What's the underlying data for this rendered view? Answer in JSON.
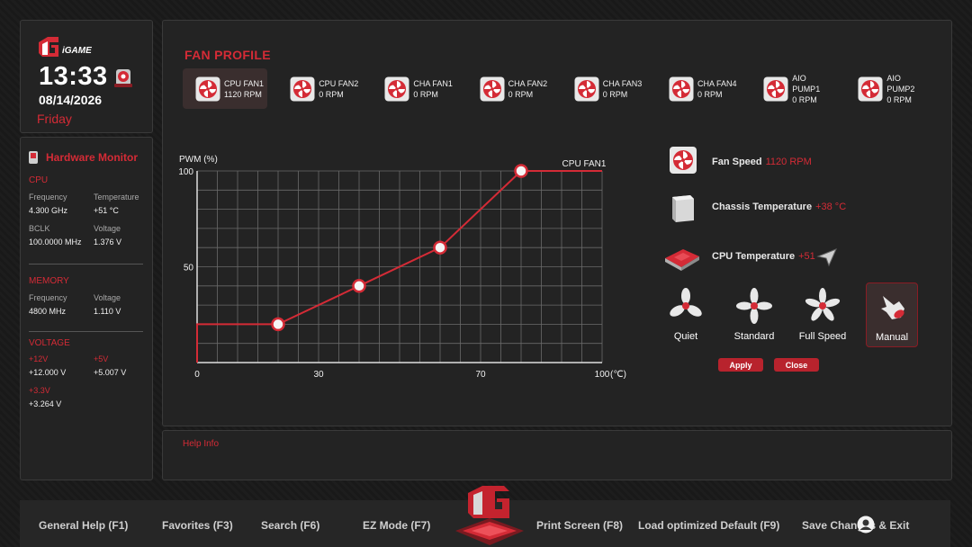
{
  "clock": {
    "time": "13:33",
    "date": "08/14/2026",
    "day": "Friday"
  },
  "hardware_monitor": {
    "title": "Hardware Monitor",
    "cpu": {
      "title": "CPU",
      "frequency_label": "Frequency",
      "frequency_value": "4.300 GHz",
      "temperature_label": "Temperature",
      "temperature_value": "+51 °C",
      "bclk_label": "BCLK",
      "bclk_value": "100.0000 MHz",
      "voltage_label": "Voltage",
      "voltage_value": "1.376 V"
    },
    "memory": {
      "title": "MEMORY",
      "frequency_label": "Frequency",
      "frequency_value": "4800 MHz",
      "voltage_label": "Voltage",
      "voltage_value": "1.110 V"
    },
    "voltage": {
      "title": "VOLTAGE",
      "v12_label": "+12V",
      "v12_value": "+12.000 V",
      "v5_label": "+5V",
      "v5_value": "+5.007 V",
      "v33_label": "+3.3V",
      "v33_value": "+3.264 V"
    }
  },
  "fan_profile": {
    "title": "FAN PROFILE",
    "tabs": [
      {
        "name": "CPU FAN1",
        "rpm": "1120 RPM"
      },
      {
        "name": "CPU FAN2",
        "rpm": "0 RPM"
      },
      {
        "name": "CHA FAN1",
        "rpm": "0 RPM"
      },
      {
        "name": "CHA FAN2",
        "rpm": "0 RPM"
      },
      {
        "name": "CHA FAN3",
        "rpm": "0 RPM"
      },
      {
        "name": "CHA FAN4",
        "rpm": "0 RPM"
      },
      {
        "name": "AIO PUMP1",
        "rpm": "0 RPM"
      },
      {
        "name": "AIO PUMP2",
        "rpm": "0 RPM"
      }
    ],
    "active_tab": 0
  },
  "chart_data": {
    "type": "line",
    "title": "",
    "ylabel": "PWM  (%)",
    "xlabel": "(℃)",
    "series_label": "CPU FAN1",
    "x_ticks": [
      "0",
      "30",
      "70",
      "100"
    ],
    "y_ticks": [
      "50",
      "100"
    ],
    "xlim": [
      0,
      100
    ],
    "ylim": [
      0,
      100
    ],
    "grid": true,
    "points": [
      {
        "x": 0,
        "y": 0
      },
      {
        "x": 0,
        "y": 20
      },
      {
        "x": 20,
        "y": 20
      },
      {
        "x": 40,
        "y": 40
      },
      {
        "x": 60,
        "y": 60
      },
      {
        "x": 80,
        "y": 100
      },
      {
        "x": 100,
        "y": 100
      }
    ],
    "handles": [
      {
        "x": 20,
        "y": 20
      },
      {
        "x": 40,
        "y": 40
      },
      {
        "x": 60,
        "y": 60
      },
      {
        "x": 80,
        "y": 100
      }
    ]
  },
  "status": {
    "fan_speed_label": "Fan Speed",
    "fan_speed_value": "1120 RPM",
    "chassis_temp_label": "Chassis Temperature",
    "chassis_temp_value": "+38 °C",
    "cpu_temp_label": "CPU Temperature",
    "cpu_temp_value": "+51"
  },
  "modes": [
    {
      "label": "Quiet"
    },
    {
      "label": "Standard"
    },
    {
      "label": "Full Speed"
    },
    {
      "label": "Manual"
    }
  ],
  "active_mode": 3,
  "buttons": {
    "apply": "Apply",
    "close": "Close"
  },
  "help": {
    "title": "Help Info"
  },
  "bottom_bar": {
    "general_help": "General Help (F1)",
    "favorites": "Favorites (F3)",
    "search": "Search (F6)",
    "ez_mode": "EZ Mode (F7)",
    "print_screen": "Print Screen (F8)",
    "load_default": "Load optimized Default (F9)",
    "save_changes": "Save Changes & Exit"
  },
  "colors": {
    "accent": "#d42b36",
    "panel": "#232323",
    "background": "#1c1c1c"
  },
  "logo_text": "iGAME"
}
